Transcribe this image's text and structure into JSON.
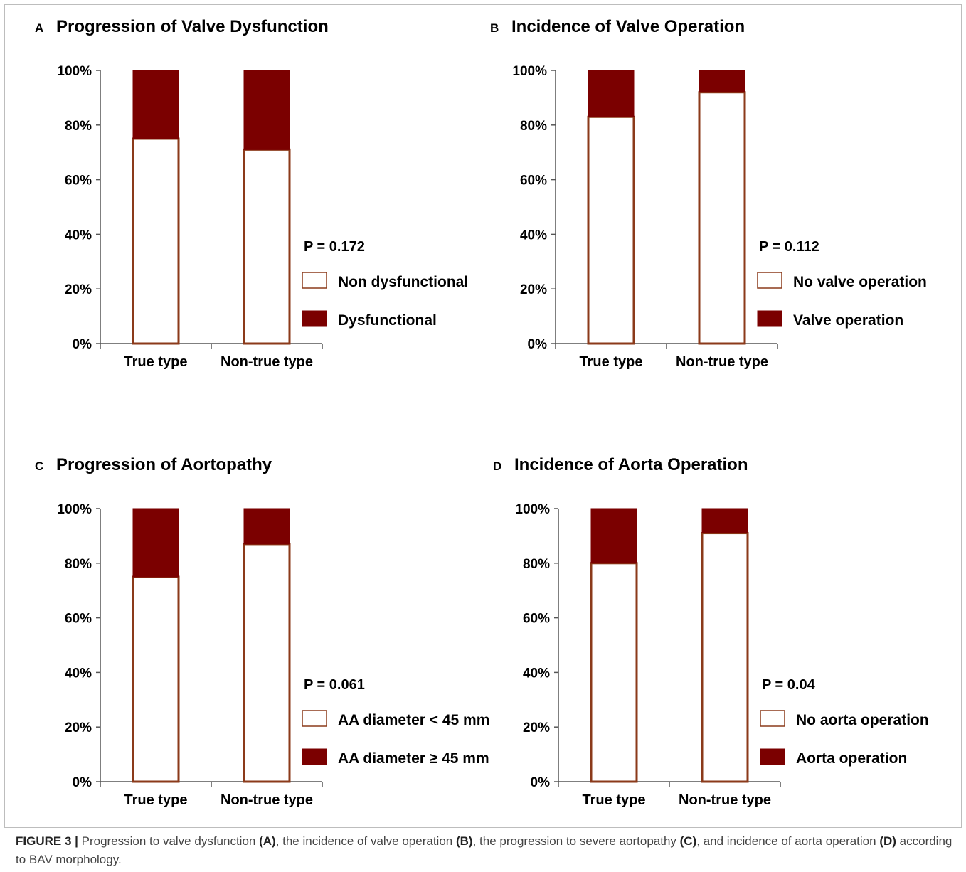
{
  "colors": {
    "dark": "#7b0000",
    "outline": "#8b3a1a",
    "axis": "#555555"
  },
  "chart_data": [
    {
      "type": "bar",
      "stacked": true,
      "panel_label": "A",
      "title": "Progression of Valve Dysfunction",
      "categories": [
        "True type",
        "Non-true type"
      ],
      "series": [
        {
          "name": "Non dysfunctional",
          "values": [
            75,
            71
          ],
          "style": "outline"
        },
        {
          "name": "Dysfunctional",
          "values": [
            25,
            29
          ],
          "style": "filled"
        }
      ],
      "yticks": [
        "0%",
        "20%",
        "40%",
        "60%",
        "80%",
        "100%"
      ],
      "ylim": [
        0,
        100
      ],
      "pvalue": "P = 0.172",
      "legend_position": "right"
    },
    {
      "type": "bar",
      "stacked": true,
      "panel_label": "B",
      "title": "Incidence of Valve Operation",
      "categories": [
        "True type",
        "Non-true type"
      ],
      "series": [
        {
          "name": "No valve operation",
          "values": [
            83,
            92
          ],
          "style": "outline"
        },
        {
          "name": "Valve operation",
          "values": [
            17,
            8
          ],
          "style": "filled"
        }
      ],
      "yticks": [
        "0%",
        "20%",
        "40%",
        "60%",
        "80%",
        "100%"
      ],
      "ylim": [
        0,
        100
      ],
      "pvalue": "P = 0.112",
      "legend_position": "right"
    },
    {
      "type": "bar",
      "stacked": true,
      "panel_label": "C",
      "title": "Progression of Aortopathy",
      "categories": [
        "True type",
        "Non-true type"
      ],
      "series": [
        {
          "name": "AA diameter < 45 mm",
          "values": [
            75,
            87
          ],
          "style": "outline"
        },
        {
          "name": "AA diameter ≥ 45 mm",
          "values": [
            25,
            13
          ],
          "style": "filled"
        }
      ],
      "yticks": [
        "0%",
        "20%",
        "40%",
        "60%",
        "80%",
        "100%"
      ],
      "ylim": [
        0,
        100
      ],
      "pvalue": "P = 0.061",
      "legend_position": "right"
    },
    {
      "type": "bar",
      "stacked": true,
      "panel_label": "D",
      "title": "Incidence of Aorta Operation",
      "categories": [
        "True type",
        "Non-true type"
      ],
      "series": [
        {
          "name": "No aorta operation",
          "values": [
            80,
            91
          ],
          "style": "outline"
        },
        {
          "name": "Aorta operation",
          "values": [
            20,
            9
          ],
          "style": "filled"
        }
      ],
      "yticks": [
        "0%",
        "20%",
        "40%",
        "60%",
        "80%",
        "100%"
      ],
      "ylim": [
        0,
        100
      ],
      "pvalue": "P = 0.04",
      "legend_position": "right"
    }
  ],
  "caption": {
    "label": "FIGURE 3 |",
    "text1": " Progression to valve dysfunction ",
    "refA": "(A)",
    "text2": ", the incidence of valve operation ",
    "refB": "(B)",
    "text3": ", the progression to severe aortopathy ",
    "refC": "(C)",
    "text4": ", and incidence of aorta operation ",
    "refD": "(D)",
    "text5": " according to BAV morphology."
  }
}
